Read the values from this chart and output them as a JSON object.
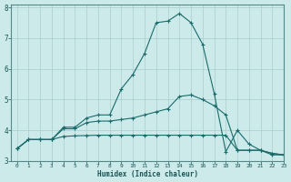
{
  "xlabel": "Humidex (Indice chaleur)",
  "xlim": [
    -0.5,
    23
  ],
  "ylim": [
    3.0,
    8.1
  ],
  "yticks": [
    3,
    4,
    5,
    6,
    7,
    8
  ],
  "xticks": [
    0,
    1,
    2,
    3,
    4,
    5,
    6,
    7,
    8,
    9,
    10,
    11,
    12,
    13,
    14,
    15,
    16,
    17,
    18,
    19,
    20,
    21,
    22,
    23
  ],
  "xtick_labels": [
    "0",
    "1",
    "2",
    "3",
    "4",
    "5",
    "6",
    "7",
    "8",
    "9",
    "10",
    "11",
    "12",
    "13",
    "14",
    "15",
    "16",
    "17",
    "18",
    "19",
    "20",
    "21",
    "22",
    "23"
  ],
  "background_color": "#cceaea",
  "grid_color": "#aacccc",
  "line_color": "#1a6b6b",
  "line1_x": [
    0,
    1,
    2,
    3,
    4,
    5,
    6,
    7,
    8,
    9,
    10,
    11,
    12,
    13,
    14,
    15,
    16,
    17,
    18,
    19,
    20,
    21,
    22,
    23
  ],
  "line1_y": [
    3.4,
    3.7,
    3.7,
    3.7,
    4.1,
    4.1,
    4.4,
    4.5,
    4.5,
    5.35,
    5.82,
    6.5,
    7.5,
    7.55,
    7.8,
    7.5,
    6.8,
    5.2,
    3.3,
    4.0,
    3.55,
    3.35,
    3.2,
    3.2
  ],
  "line2_x": [
    0,
    1,
    2,
    3,
    4,
    5,
    6,
    7,
    8,
    9,
    10,
    11,
    12,
    13,
    14,
    15,
    16,
    17,
    18,
    19,
    20,
    21,
    22,
    23
  ],
  "line2_y": [
    3.4,
    3.7,
    3.7,
    3.7,
    4.05,
    4.05,
    4.25,
    4.3,
    4.3,
    4.35,
    4.4,
    4.5,
    4.6,
    4.7,
    5.1,
    5.15,
    5.0,
    4.8,
    4.5,
    3.35,
    3.35,
    3.35,
    3.25,
    3.2
  ],
  "line3_x": [
    0,
    1,
    2,
    3,
    4,
    5,
    6,
    7,
    8,
    9,
    10,
    11,
    12,
    13,
    14,
    15,
    16,
    17,
    18,
    19,
    20,
    21,
    22,
    23
  ],
  "line3_y": [
    3.4,
    3.7,
    3.7,
    3.7,
    3.8,
    3.82,
    3.83,
    3.84,
    3.84,
    3.84,
    3.84,
    3.84,
    3.84,
    3.84,
    3.84,
    3.84,
    3.84,
    3.84,
    3.84,
    3.35,
    3.35,
    3.35,
    3.25,
    3.2
  ]
}
